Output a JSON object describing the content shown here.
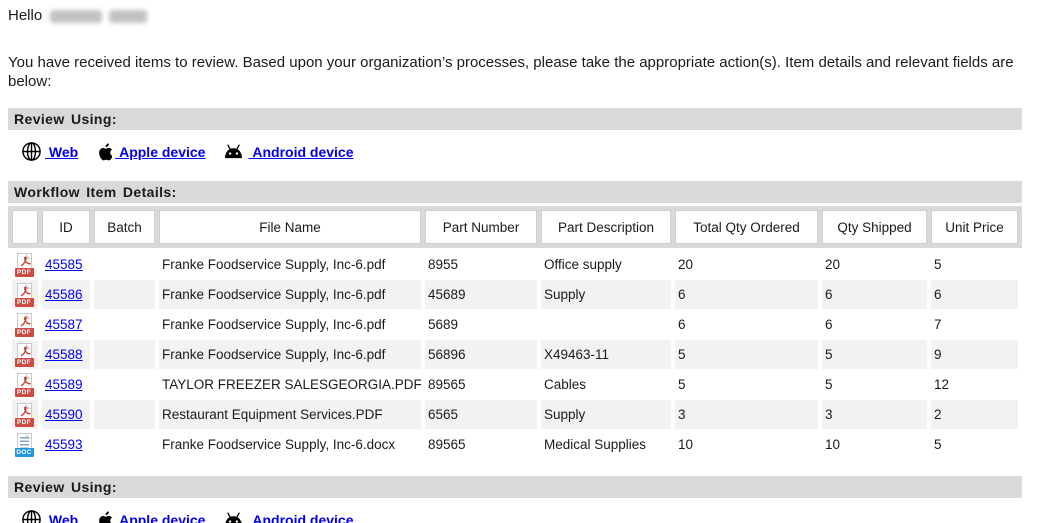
{
  "greeting": {
    "text": "Hello",
    "name_redacted": true
  },
  "intro": "You have received items to review. Based upon your organization’s processes, please take the appropriate action(s). Item details and relevant fields are below:",
  "review_using": {
    "title": "Review Using:",
    "links": [
      {
        "icon": "globe-icon",
        "label": "Web"
      },
      {
        "icon": "apple-icon",
        "label": "Apple device"
      },
      {
        "icon": "android-icon",
        "label": "Android device"
      }
    ]
  },
  "workflow": {
    "title": "Workflow Item Details:",
    "columns": [
      "",
      "ID",
      "Batch",
      "File Name",
      "Part Number",
      "Part Description",
      "Total Qty Ordered",
      "Qty Shipped",
      "Unit Price"
    ],
    "rows": [
      {
        "icon": "pdf-file-icon",
        "badge": "PDF",
        "id": "45585",
        "batch": "",
        "file_name": "Franke Foodservice Supply, Inc-6.pdf",
        "part_number": "8955",
        "part_description": "Office supply",
        "total_qty_ordered": "20",
        "qty_shipped": "20",
        "unit_price": "5"
      },
      {
        "icon": "pdf-file-icon",
        "badge": "PDF",
        "id": "45586",
        "batch": "",
        "file_name": "Franke Foodservice Supply, Inc-6.pdf",
        "part_number": "45689",
        "part_description": "Supply",
        "total_qty_ordered": "6",
        "qty_shipped": "6",
        "unit_price": "6"
      },
      {
        "icon": "pdf-file-icon",
        "badge": "PDF",
        "id": "45587",
        "batch": "",
        "file_name": "Franke Foodservice Supply, Inc-6.pdf",
        "part_number": "5689",
        "part_description": "",
        "total_qty_ordered": "6",
        "qty_shipped": "6",
        "unit_price": "7"
      },
      {
        "icon": "pdf-file-icon",
        "badge": "PDF",
        "id": "45588",
        "batch": "",
        "file_name": "Franke Foodservice Supply, Inc-6.pdf",
        "part_number": "56896",
        "part_description": "X49463-11",
        "total_qty_ordered": "5",
        "qty_shipped": "5",
        "unit_price": "9"
      },
      {
        "icon": "pdf-file-icon",
        "badge": "PDF",
        "id": "45589",
        "batch": "",
        "file_name": "TAYLOR FREEZER SALESGEORGIA.PDF",
        "part_number": "89565",
        "part_description": "Cables",
        "total_qty_ordered": "5",
        "qty_shipped": "5",
        "unit_price": "12"
      },
      {
        "icon": "pdf-file-icon",
        "badge": "PDF",
        "id": "45590",
        "batch": "",
        "file_name": "Restaurant Equipment Services.PDF",
        "part_number": "6565",
        "part_description": "Supply",
        "total_qty_ordered": "3",
        "qty_shipped": "3",
        "unit_price": "2"
      },
      {
        "icon": "doc-file-icon",
        "badge": "DOC",
        "id": "45593",
        "batch": "",
        "file_name": "Franke Foodservice Supply, Inc-6.docx",
        "part_number": "89565",
        "part_description": "Medical Supplies",
        "total_qty_ordered": "10",
        "qty_shipped": "10",
        "unit_price": "5"
      }
    ]
  },
  "colors": {
    "section_bar_bg": "#d9d9d9",
    "row_stripe": "#f2f2f2",
    "link_blue": "#0000EE",
    "pdf_red": "#cc4b43",
    "doc_blue": "#1f97dd",
    "text": "#1a1a1a"
  }
}
